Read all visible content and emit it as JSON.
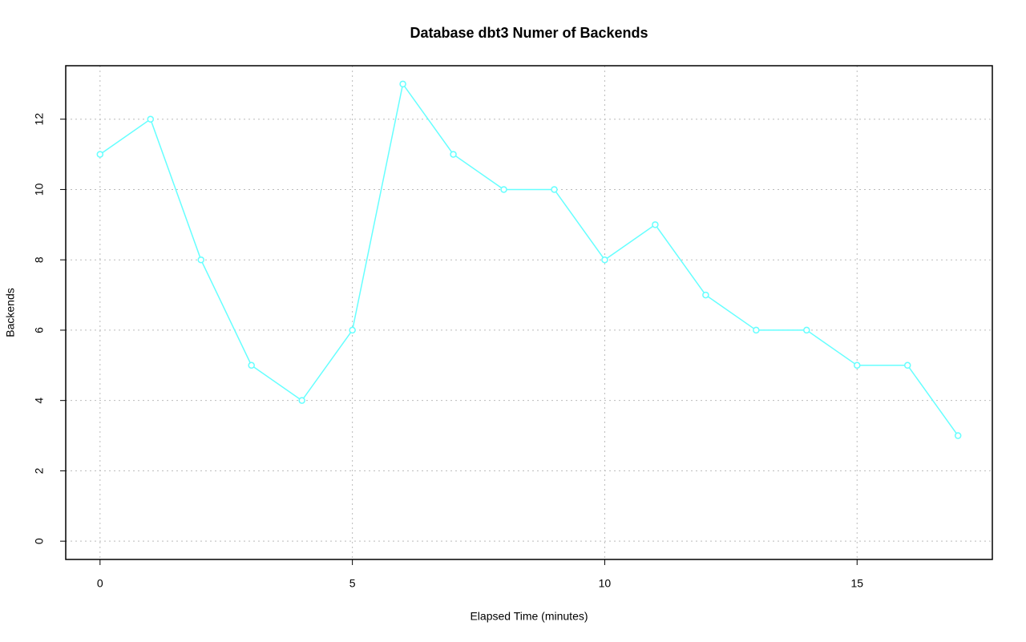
{
  "chart_data": {
    "type": "line",
    "title": "Database dbt3 Numer of Backends",
    "x_label": "Elapsed Time (minutes)",
    "y_label": "Backends",
    "x": [
      0,
      1,
      2,
      3,
      4,
      5,
      6,
      7,
      8,
      9,
      10,
      11,
      12,
      13,
      14,
      15,
      16,
      17
    ],
    "values": [
      11,
      12,
      8,
      5,
      4,
      6,
      13,
      11,
      10,
      10,
      8,
      9,
      7,
      6,
      6,
      5,
      5,
      3
    ],
    "color": "#66ffff",
    "xlim": [
      -0.68,
      17.68
    ],
    "xticks": [
      0,
      5,
      10,
      15
    ],
    "ylim": [
      -0.52,
      13.52
    ],
    "yticks": [
      0,
      2,
      4,
      6,
      8,
      10,
      12
    ],
    "grid": true
  }
}
